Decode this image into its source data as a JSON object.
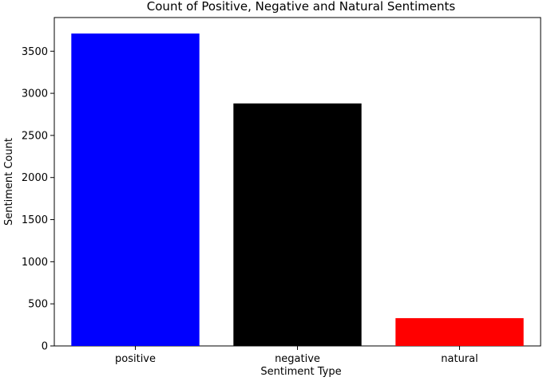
{
  "chart_data": {
    "type": "bar",
    "title": "Count of Positive, Negative and Natural Sentiments",
    "xlabel": "Sentiment Type",
    "ylabel": "Sentiment Count",
    "categories": [
      "positive",
      "negative",
      "natural"
    ],
    "values": [
      3710,
      2880,
      330
    ],
    "colors": [
      "#0000ff",
      "#000000",
      "#ff0000"
    ],
    "ylim": [
      0,
      3900
    ],
    "yticks": [
      0,
      500,
      1000,
      1500,
      2000,
      2500,
      3000,
      3500
    ],
    "grid": false,
    "legend": "none"
  }
}
